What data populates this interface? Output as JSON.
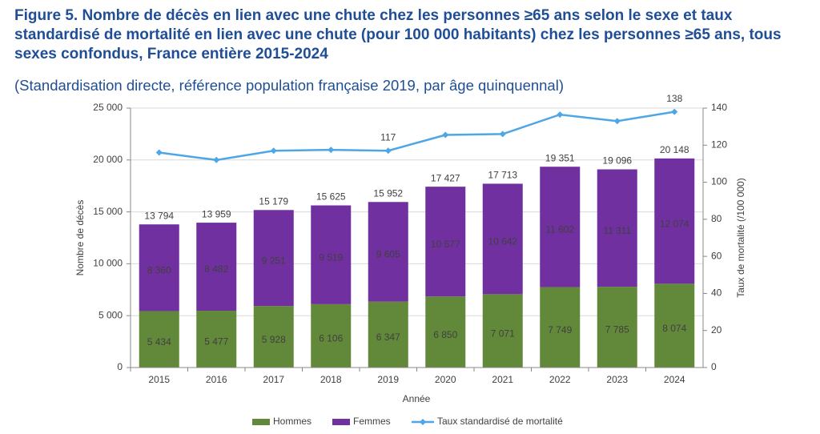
{
  "chart_data": {
    "type": "bar-line",
    "title": "Figure 5. Nombre de décès en lien avec une chute chez les personnes ≥65 ans selon le sexe et taux standardisé de mortalité en lien avec une chute (pour 100 000 habitants) chez les personnes ≥65 ans, tous sexes confondus, France entière 2015-2024",
    "subtitle": "(Standardisation directe, référence population française 2019, par âge quinquennal)",
    "x_label": "Année",
    "y_label": "Nombre de décès",
    "y2_label": "Taux de mortalité (/100 000)",
    "categories": [
      "2015",
      "2016",
      "2017",
      "2018",
      "2019",
      "2020",
      "2021",
      "2022",
      "2023",
      "2024"
    ],
    "series": [
      {
        "name": "Hommes",
        "color": "#62883a",
        "stacked": true,
        "values": [
          5434,
          5477,
          5928,
          6106,
          6347,
          6850,
          7071,
          7749,
          7785,
          8074
        ],
        "value_labels": [
          "5 434",
          "5 477",
          "5 928",
          "6 106",
          "6 347",
          "6 850",
          "7 071",
          "7 749",
          "7 785",
          "8 074"
        ]
      },
      {
        "name": "Femmes",
        "color": "#7030a0",
        "stacked": true,
        "values": [
          8360,
          8482,
          9251,
          9519,
          9605,
          10577,
          10642,
          11602,
          11311,
          12074
        ],
        "value_labels": [
          "8 360",
          "8 482",
          "9 251",
          "9 519",
          "9 605",
          "10 577",
          "10 642",
          "11 602",
          "11 311",
          "12 074"
        ]
      },
      {
        "name": "Taux standardisé de mortalité",
        "color": "#4ea6e6",
        "axis": "y2",
        "values": [
          116,
          112,
          117,
          117.5,
          117,
          125.5,
          126,
          136.5,
          133,
          138
        ],
        "value_labels": [
          null,
          null,
          null,
          null,
          "117",
          null,
          null,
          null,
          null,
          "138"
        ]
      }
    ],
    "totals": {
      "values": [
        13794,
        13959,
        15179,
        15625,
        15952,
        17427,
        17713,
        19351,
        19096,
        20148
      ],
      "value_labels": [
        "13 794",
        "13 959",
        "15 179",
        "15 625",
        "15 952",
        "17 427",
        "17 713",
        "19 351",
        "19 096",
        "20 148"
      ]
    },
    "ylim": [
      0,
      25000
    ],
    "yticks": [
      0,
      {
        "value": 5000,
        "label": "5 000"
      },
      {
        "value": 10000,
        "label": "10 000"
      },
      {
        "value": 15000,
        "label": "15 000"
      },
      {
        "value": 20000,
        "label": "20 000"
      },
      {
        "value": 25000,
        "label": "25 000"
      }
    ],
    "y2lim": [
      0,
      140
    ],
    "y2ticks": [
      0,
      20,
      40,
      60,
      80,
      100,
      120,
      140
    ],
    "grid": true
  }
}
